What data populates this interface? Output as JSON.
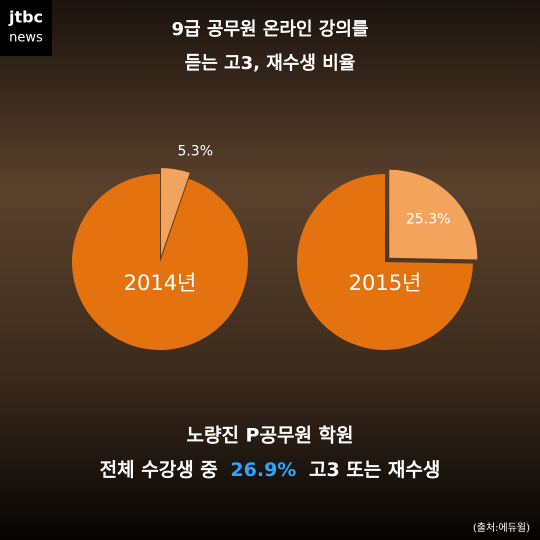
{
  "header": {
    "logo": [
      "jtbc",
      "news"
    ],
    "title": [
      "9급 공무원 온라인 강의를",
      "듣는 고3, 재수생 비율"
    ]
  },
  "chart_data": [
    {
      "type": "pie",
      "title": "2014년",
      "values": [
        5.3,
        94.7
      ],
      "value_labels": [
        "5.3%",
        null
      ],
      "colors": [
        "#f4a35c",
        "#e3720f"
      ],
      "exploded": [
        true,
        false
      ]
    },
    {
      "type": "pie",
      "title": "2015년",
      "values": [
        25.3,
        74.7
      ],
      "value_labels": [
        "25.3%",
        null
      ],
      "colors": [
        "#f4a35c",
        "#e3720f"
      ],
      "exploded": [
        true,
        false
      ]
    }
  ],
  "footer": {
    "line1": "노량진 P공무원 학원",
    "line2": [
      "전체 수강생 중",
      "26.9%",
      "고3 또는 재수생"
    ],
    "source": "(출처:에듀윌)"
  }
}
